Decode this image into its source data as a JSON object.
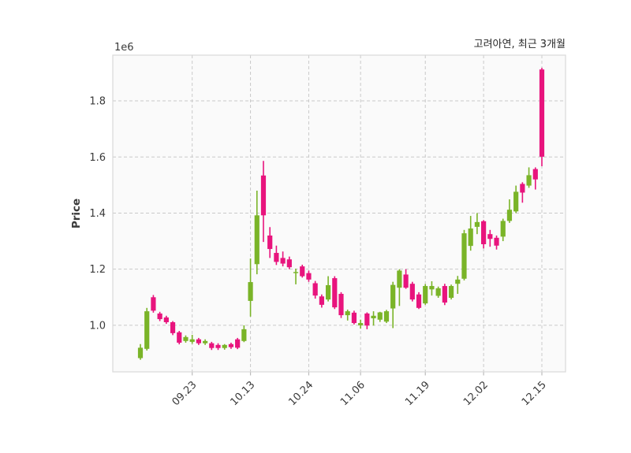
{
  "chart_data": {
    "type": "candlestick",
    "title": "고려아연, 최근 3개월",
    "ylabel": "Price",
    "y_offset_label": "1e6",
    "grid": true,
    "legend": false,
    "ylim": [
      0.834,
      1.963
    ],
    "y_ticks": [
      1.0,
      1.2,
      1.4,
      1.6,
      1.8
    ],
    "x_ticks": [
      {
        "label": "09.23",
        "index": 8
      },
      {
        "label": "10.13",
        "index": 17
      },
      {
        "label": "10.24",
        "index": 26
      },
      {
        "label": "11.06",
        "index": 34
      },
      {
        "label": "11.19",
        "index": 44
      },
      {
        "label": "12.02",
        "index": 53
      },
      {
        "label": "12.15",
        "index": 62
      }
    ],
    "candle_format": [
      "open",
      "high",
      "low",
      "close"
    ],
    "candles": [
      [
        0.883,
        0.933,
        0.877,
        0.92
      ],
      [
        0.916,
        1.062,
        0.91,
        1.05
      ],
      [
        1.1,
        1.108,
        1.045,
        1.052
      ],
      [
        1.042,
        1.048,
        1.015,
        1.022
      ],
      [
        1.028,
        1.034,
        1.005,
        1.011
      ],
      [
        1.011,
        1.015,
        0.965,
        0.972
      ],
      [
        0.975,
        0.98,
        0.932,
        0.938
      ],
      [
        0.944,
        0.964,
        0.938,
        0.958
      ],
      [
        0.941,
        0.966,
        0.934,
        0.95
      ],
      [
        0.95,
        0.955,
        0.93,
        0.936
      ],
      [
        0.936,
        0.95,
        0.93,
        0.944
      ],
      [
        0.936,
        0.941,
        0.912,
        0.919
      ],
      [
        0.93,
        0.936,
        0.912,
        0.919
      ],
      [
        0.919,
        0.933,
        0.913,
        0.93
      ],
      [
        0.933,
        0.938,
        0.916,
        0.922
      ],
      [
        0.95,
        0.955,
        0.915,
        0.92
      ],
      [
        0.944,
        1.0,
        0.94,
        0.986
      ],
      [
        1.087,
        1.238,
        1.031,
        1.154
      ],
      [
        1.218,
        1.48,
        1.182,
        1.392
      ],
      [
        1.534,
        1.586,
        1.297,
        1.392
      ],
      [
        1.32,
        1.35,
        1.24,
        1.272
      ],
      [
        1.258,
        1.284,
        1.215,
        1.226
      ],
      [
        1.24,
        1.263,
        1.21,
        1.22
      ],
      [
        1.235,
        1.245,
        1.2,
        1.207
      ],
      [
        1.188,
        1.202,
        1.146,
        1.19
      ],
      [
        1.21,
        1.216,
        1.17,
        1.175
      ],
      [
        1.186,
        1.195,
        1.155,
        1.163
      ],
      [
        1.15,
        1.158,
        1.095,
        1.106
      ],
      [
        1.103,
        1.11,
        1.063,
        1.073
      ],
      [
        1.092,
        1.175,
        1.085,
        1.143
      ],
      [
        1.168,
        1.175,
        1.058,
        1.064
      ],
      [
        1.112,
        1.118,
        1.026,
        1.036
      ],
      [
        1.036,
        1.056,
        1.017,
        1.05
      ],
      [
        1.045,
        1.052,
        1.003,
        1.008
      ],
      [
        1.0,
        1.02,
        0.988,
        1.008
      ],
      [
        1.042,
        1.046,
        0.986,
        0.999
      ],
      [
        1.025,
        1.05,
        0.999,
        1.034
      ],
      [
        1.02,
        1.048,
        1.012,
        1.046
      ],
      [
        1.013,
        1.055,
        1.008,
        1.05
      ],
      [
        1.06,
        1.155,
        0.99,
        1.144
      ],
      [
        1.134,
        1.2,
        1.069,
        1.195
      ],
      [
        1.181,
        1.2,
        1.13,
        1.134
      ],
      [
        1.148,
        1.155,
        1.085,
        1.092
      ],
      [
        1.11,
        1.118,
        1.058,
        1.062
      ],
      [
        1.078,
        1.147,
        1.073,
        1.14
      ],
      [
        1.128,
        1.157,
        1.106,
        1.14
      ],
      [
        1.105,
        1.138,
        1.098,
        1.132
      ],
      [
        1.14,
        1.148,
        1.072,
        1.081
      ],
      [
        1.098,
        1.145,
        1.092,
        1.14
      ],
      [
        1.148,
        1.176,
        1.112,
        1.163
      ],
      [
        1.166,
        1.34,
        1.16,
        1.328
      ],
      [
        1.283,
        1.39,
        1.266,
        1.345
      ],
      [
        1.351,
        1.4,
        1.325,
        1.368
      ],
      [
        1.371,
        1.375,
        1.274,
        1.289
      ],
      [
        1.325,
        1.34,
        1.28,
        1.308
      ],
      [
        1.312,
        1.32,
        1.27,
        1.284
      ],
      [
        1.316,
        1.38,
        1.3,
        1.372
      ],
      [
        1.372,
        1.449,
        1.365,
        1.412
      ],
      [
        1.406,
        1.498,
        1.4,
        1.476
      ],
      [
        1.504,
        1.51,
        1.437,
        1.473
      ],
      [
        1.498,
        1.563,
        1.49,
        1.535
      ],
      [
        1.557,
        1.563,
        1.484,
        1.52
      ],
      [
        1.912,
        1.918,
        1.567,
        1.601
      ]
    ],
    "colors": {
      "up": "#7ab428",
      "down": "#e8147d",
      "grid": "#c9c9c9",
      "plot_bg": "#fafafa",
      "border": "#d8d8d8",
      "tick_mark": "#bbbbbb",
      "axis_text": "#3a3a3a",
      "title_text": "#262626"
    }
  }
}
